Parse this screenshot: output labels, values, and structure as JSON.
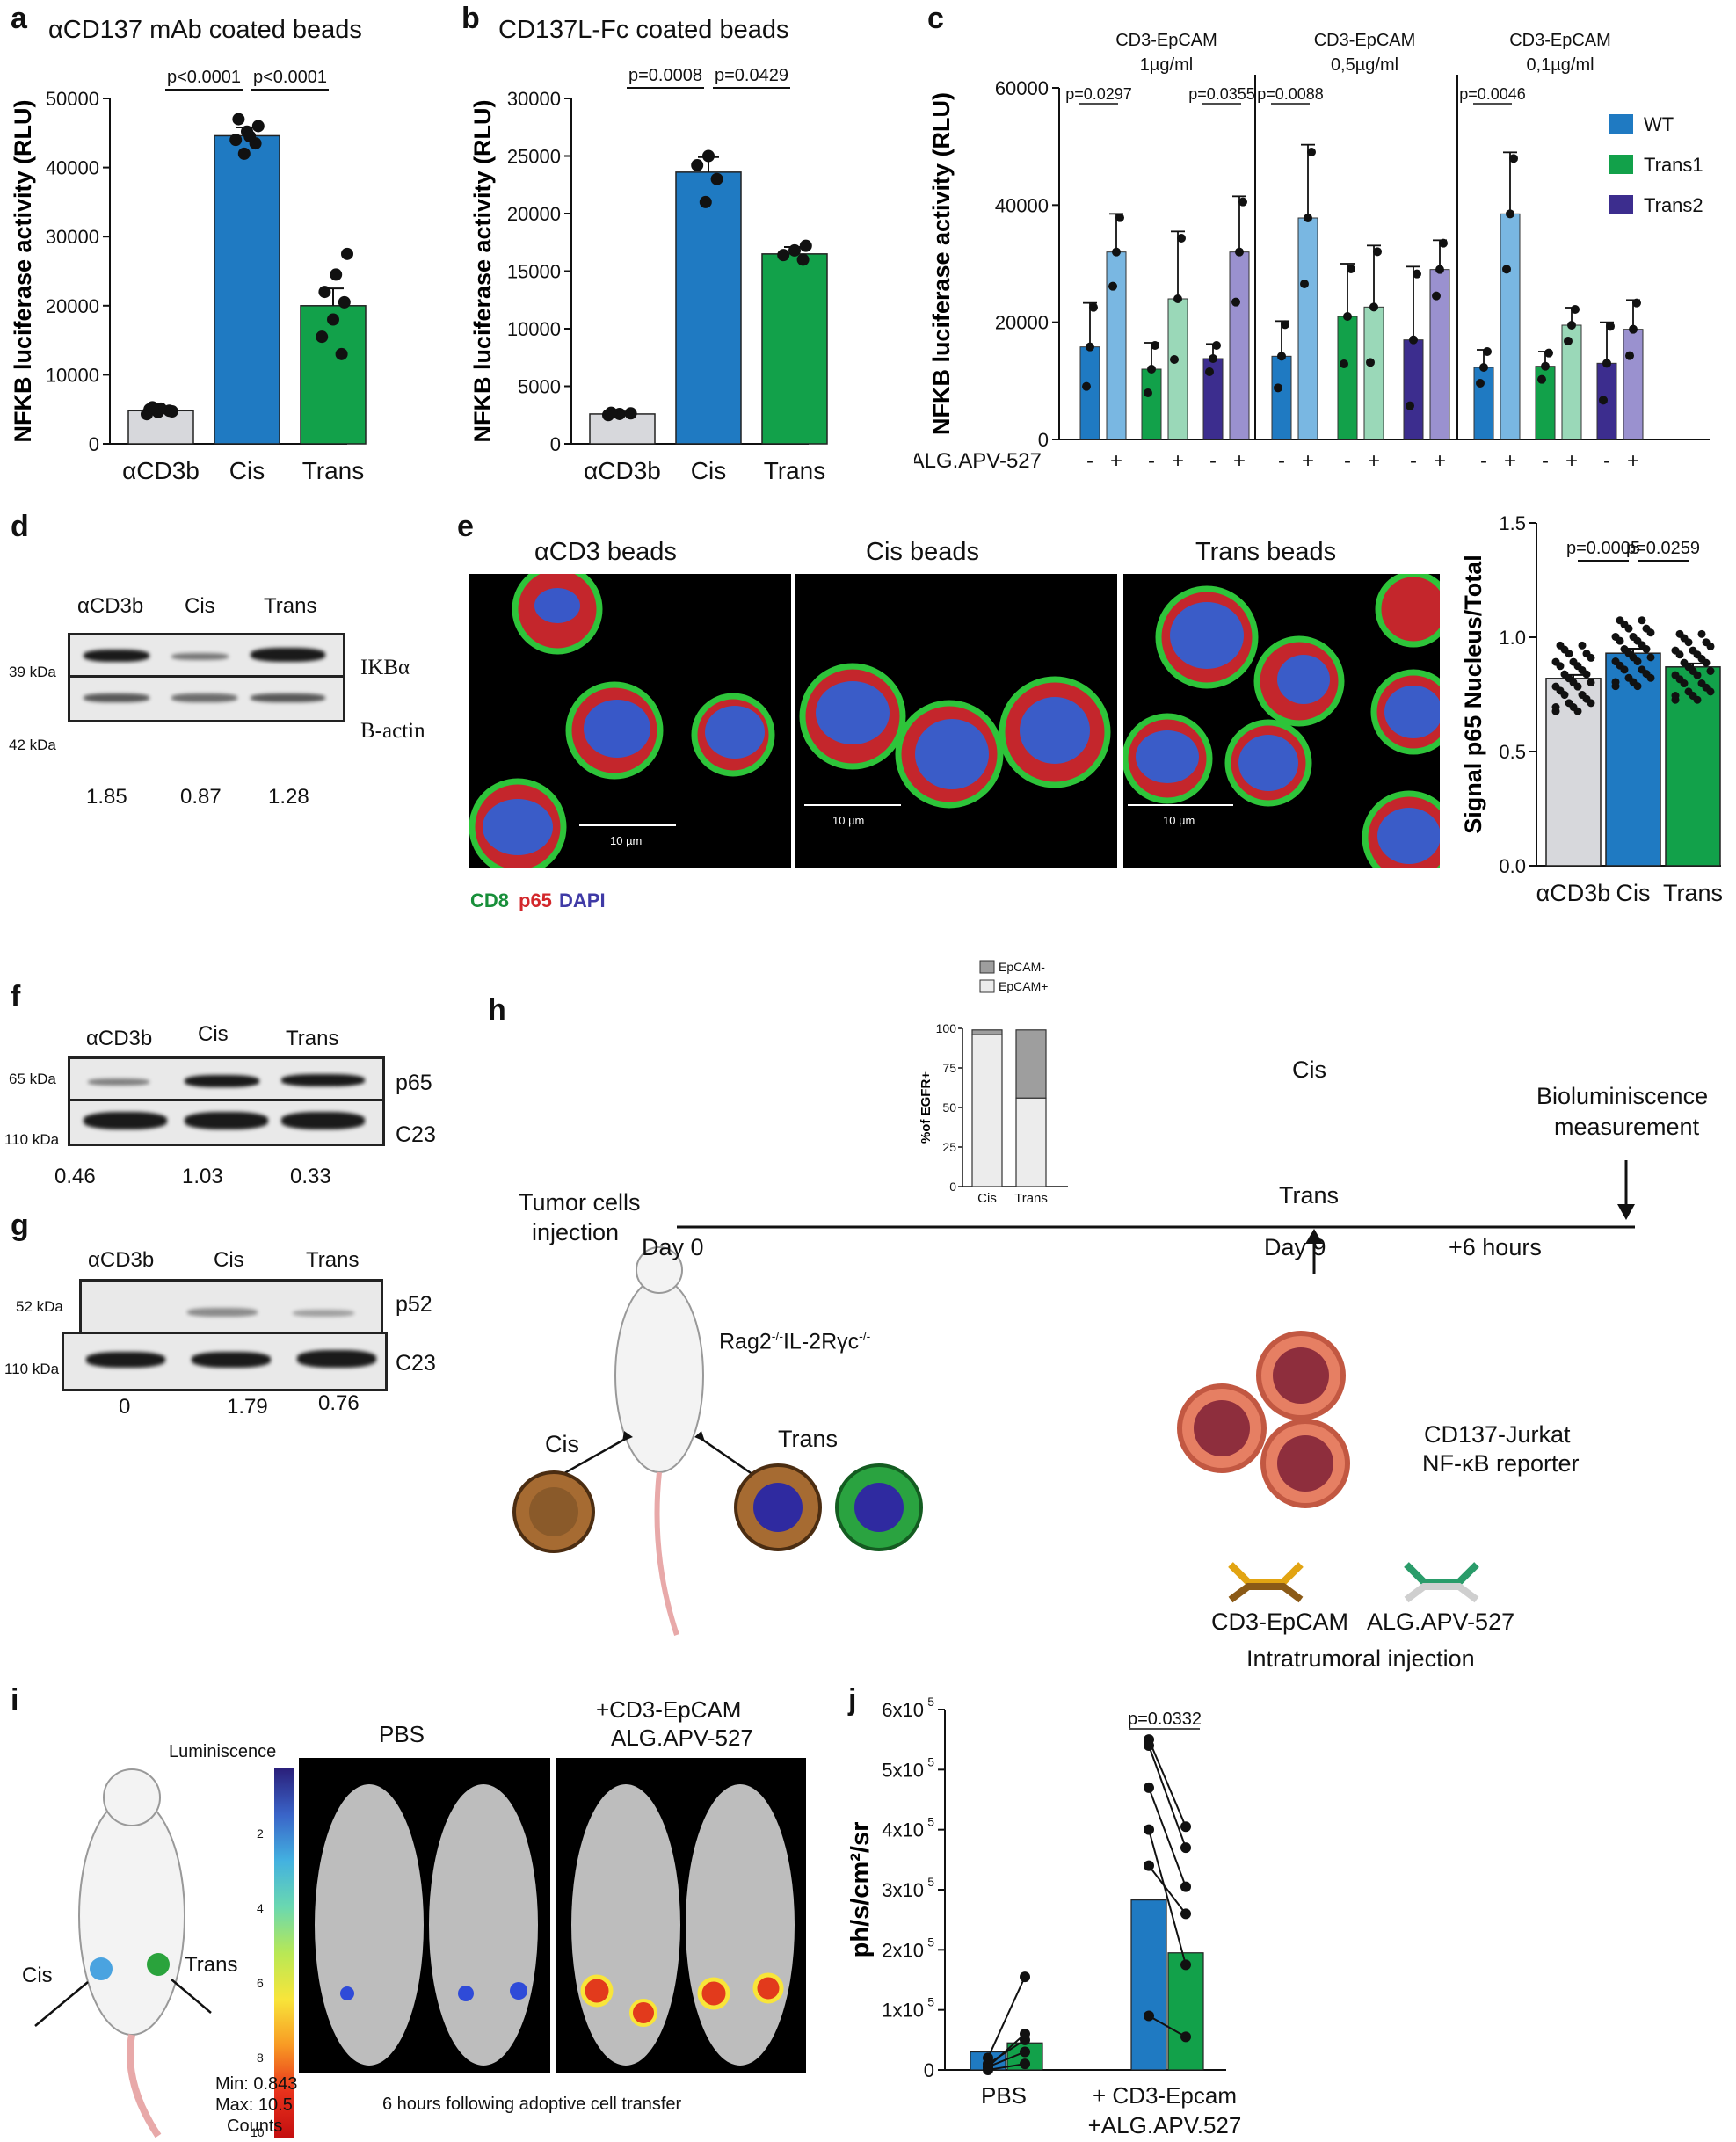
{
  "panel_letters": {
    "a": "a",
    "b": "b",
    "c": "c",
    "d": "d",
    "e": "e",
    "f": "f",
    "g": "g",
    "h": "h",
    "i": "i",
    "j": "j"
  },
  "colors": {
    "grey": "#d7d8dc",
    "blue": "#1f7ac2",
    "green": "#12a14a",
    "purple": "#3c2d8e",
    "light_blue": "#79b7e2",
    "light_green": "#9ad8b8",
    "light_purple": "#9a91cf"
  },
  "chart_data": [
    {
      "id": "a",
      "type": "bar",
      "title": "αCD137 mAb coated beads",
      "ylabel": "NFKB luciferase activity (RLU)",
      "categories": [
        "αCD3b",
        "Cis",
        "Trans"
      ],
      "values": [
        4800,
        44600,
        20000
      ],
      "errors": [
        500,
        1200,
        2500
      ],
      "ylim": [
        0,
        50000
      ],
      "yticks": [
        "0",
        "10000",
        "20000",
        "30000",
        "40000",
        "50000"
      ],
      "points": [
        [
          4300,
          4600,
          4800,
          5000,
          5100,
          4700,
          5300
        ],
        [
          42000,
          43500,
          44000,
          45200,
          46000,
          47000,
          44500
        ],
        [
          13000,
          15500,
          18000,
          20500,
          22000,
          24500,
          27500
        ]
      ],
      "annotations": [
        "p<0.0001",
        "p<0.0001"
      ]
    },
    {
      "id": "b",
      "type": "bar",
      "title": "CD137L-Fc coated beads",
      "ylabel": "NFKB luciferase activity (RLU)",
      "categories": [
        "αCD3b",
        "Cis",
        "Trans"
      ],
      "values": [
        2600,
        23600,
        16500
      ],
      "errors": [
        150,
        1300,
        600
      ],
      "ylim": [
        0,
        30000
      ],
      "yticks": [
        "0",
        "5000",
        "10000",
        "15000",
        "20000",
        "25000",
        "30000"
      ],
      "points": [
        [
          2500,
          2600,
          2650,
          2700
        ],
        [
          21000,
          23000,
          24200,
          25000
        ],
        [
          16000,
          16400,
          16800,
          17200
        ]
      ],
      "annotations": [
        "p=0.0008",
        "p=0.0429"
      ]
    },
    {
      "id": "c",
      "type": "bar",
      "ylabel": "NFKB luciferase activity (RLU)",
      "ylim": [
        0,
        60000
      ],
      "yticks": [
        "0",
        "20000",
        "40000",
        "60000"
      ],
      "groups": [
        "CD3-EpCAM 1µg/ml",
        "CD3-EpCAM 0,5µg/ml",
        "CD3-EpCAM 0,1µg/ml"
      ],
      "group_lines": [
        [
          "CD3-EpCAM",
          "1µg/ml"
        ],
        [
          "CD3-EpCAM",
          "0,5µg/ml"
        ],
        [
          "CD3-EpCAM",
          "0,1µg/ml"
        ]
      ],
      "legend": [
        "WT",
        "Trans1",
        "Trans2"
      ],
      "xrow_label": "ALG.APV-527",
      "minus": "-",
      "plus": "+",
      "series": [
        {
          "name": "WT",
          "values": [
            [
              15800,
              32000
            ],
            [
              14200,
              37800
            ],
            [
              12300,
              38500
            ]
          ],
          "errors": [
            [
              7500,
              6500
            ],
            [
              6000,
              12500
            ],
            [
              3000,
              10500
            ]
          ]
        },
        {
          "name": "Trans1",
          "values": [
            [
              12000,
              24000
            ],
            [
              21000,
              22600
            ],
            [
              12500,
              19500
            ]
          ],
          "errors": [
            [
              4500,
              11500
            ],
            [
              9000,
              10500
            ],
            [
              2500,
              3000
            ]
          ]
        },
        {
          "name": "Trans2",
          "values": [
            [
              13800,
              32000
            ],
            [
              17000,
              29000
            ],
            [
              13000,
              18800
            ]
          ],
          "errors": [
            [
              2500,
              9500
            ],
            [
              12500,
              5000
            ],
            [
              7000,
              5000
            ]
          ]
        }
      ],
      "annotations": [
        "p=0.0297",
        "p=0.0355",
        "p=0.0088",
        "p=0.0046"
      ]
    },
    {
      "id": "e-bar",
      "type": "bar",
      "ylabel": "Signal p65 Nucleus/Total",
      "categories": [
        "αCD3b",
        "Cis",
        "Trans"
      ],
      "values": [
        0.82,
        0.93,
        0.87
      ],
      "errors": [
        0.015,
        0.02,
        0.015
      ],
      "ylim": [
        0,
        1.5
      ],
      "yticks": [
        "0.0",
        "0.5",
        "1.0",
        "1.5"
      ],
      "annotations": [
        "p=0.0005",
        "p=0.0259"
      ]
    },
    {
      "id": "h-inset",
      "type": "bar",
      "ylabel": "%of EGFR+",
      "categories": [
        "Cis",
        "Trans"
      ],
      "series": [
        {
          "name": "EpCAM+",
          "values": [
            96,
            56
          ]
        },
        {
          "name": "EpCAM-",
          "values": [
            3,
            43
          ]
        }
      ],
      "ylim": [
        0,
        100
      ],
      "yticks": [
        "0",
        "25",
        "50",
        "75",
        "100"
      ]
    },
    {
      "id": "j",
      "type": "bar",
      "ylabel": "ph/s/cm²/sr",
      "categories": [
        "PBS",
        "+ CD3-Epcam +ALG.APV.527"
      ],
      "xlabels": [
        [
          "PBS"
        ],
        [
          "+ CD3-Epcam",
          "+ALG.APV.527"
        ]
      ],
      "series": [
        {
          "values": [
            30000,
            283000
          ]
        },
        {
          "values": [
            45000,
            195000
          ]
        }
      ],
      "pairs": [
        [
          [
            0,
            10000
          ],
          [
            5000,
            30000
          ],
          [
            10000,
            50000
          ],
          [
            5000,
            60000
          ],
          [
            20000,
            155000
          ]
        ],
        [
          [
            550000,
            405000
          ],
          [
            540000,
            370000
          ],
          [
            470000,
            305000
          ],
          [
            400000,
            175000
          ],
          [
            340000,
            260000
          ],
          [
            90000,
            55000
          ]
        ]
      ],
      "ylim": [
        0,
        600000
      ],
      "yticks": [
        "1x10",
        "2x10",
        "3x10",
        "4x10",
        "5x10",
        "6x10"
      ],
      "ytick_exp": "5",
      "annotations": [
        "p=0.0332"
      ]
    }
  ],
  "panel_d": {
    "lanes": [
      "αCD3b",
      "Cis",
      "Trans"
    ],
    "rows": [
      "IKBα",
      "Β-actin"
    ],
    "kda": [
      "39 kDa",
      "42 kDa"
    ],
    "quant": [
      "1.85",
      "0.87",
      "1.28"
    ]
  },
  "panel_e": {
    "titles": [
      "αCD3 beads",
      "Cis beads",
      "Trans beads"
    ],
    "scale": "10 µm",
    "stain_labels": [
      "CD8",
      "p65",
      "DAPI"
    ]
  },
  "panel_f": {
    "lanes": [
      "αCD3b",
      "Cis",
      "Trans"
    ],
    "rows": [
      "p65",
      "C23"
    ],
    "kda": [
      "65 kDa",
      "110 kDa"
    ],
    "quant": [
      "0.46",
      "1.03",
      "0.33"
    ]
  },
  "panel_g": {
    "lanes": [
      "αCD3b",
      "Cis",
      "Trans"
    ],
    "rows": [
      "p52",
      "C23"
    ],
    "kda": [
      "52 kDa",
      "110 kDa"
    ],
    "quant": [
      "0",
      "1.79",
      "0.76"
    ]
  },
  "panel_h": {
    "tumor_cells": "Tumor cells",
    "injection": "injection",
    "day0": "Day 0",
    "day9": "Day 9",
    "plus6h": "+6 hours",
    "biolum1": "Bioluminiscence",
    "biolum2": "measurement",
    "cis": "Cis",
    "trans": "Trans",
    "mouse_strain": "Rag2",
    "mouse_sup1": "-/-",
    "mouse_strain2": "IL-2Rγc",
    "mouse_sup2": "-/-",
    "reporter1": "CD137-Jurkat",
    "reporter2": "NF-κB reporter",
    "ab1": "CD3-EpCAM",
    "ab2": "ALG.APV-527",
    "intratumoral": "Intratrumoral  injection"
  },
  "panel_i": {
    "luminescence": "Luminiscence",
    "scale_ticks": [
      "2",
      "4",
      "6",
      "8",
      "10"
    ],
    "min": "Min: 0.843",
    "max": "Max: 10.5",
    "counts": "Counts",
    "pbs": "PBS",
    "treat1": "+CD3-EpCAM",
    "treat2": "ALG.APV-527",
    "caption": "6 hours following adoptive cell transfer",
    "cis": "Cis",
    "trans": "Trans"
  }
}
